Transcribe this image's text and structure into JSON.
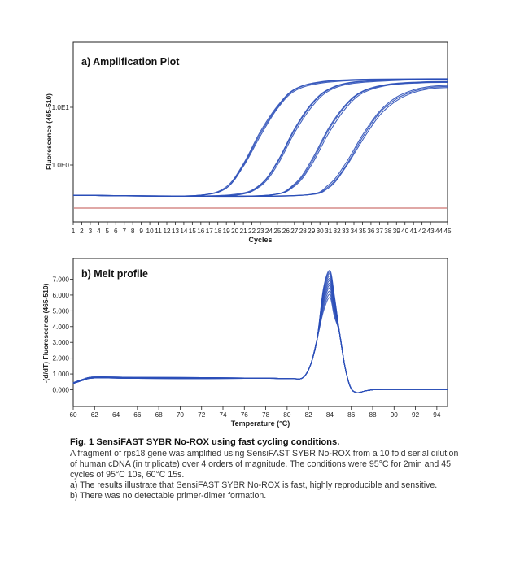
{
  "colors": {
    "curve": "#2b4fb8",
    "baseline": "#c0504d",
    "axis": "#222222"
  },
  "chart_data": [
    {
      "type": "line",
      "title": "a) Amplification Plot",
      "xlabel": "Cycles",
      "ylabel": "Fluorescence (465-510)",
      "y_scale": "log",
      "xlim": [
        1,
        45
      ],
      "x_ticks": [
        1,
        2,
        3,
        4,
        5,
        6,
        7,
        8,
        9,
        10,
        11,
        12,
        13,
        14,
        15,
        16,
        17,
        18,
        19,
        20,
        21,
        22,
        23,
        24,
        25,
        26,
        27,
        28,
        29,
        30,
        31,
        32,
        33,
        34,
        35,
        36,
        37,
        38,
        39,
        40,
        41,
        42,
        43,
        44,
        45
      ],
      "y_ticks": [
        "1.0E1",
        "1.0E0"
      ],
      "threshold_line_color": "#c0504d",
      "series": [
        {
          "values": [
            [
              1,
              0.3
            ],
            [
              10,
              0.29
            ],
            [
              16,
              0.3
            ],
            [
              19,
              0.4
            ],
            [
              21,
              1.0
            ],
            [
              23,
              3.5
            ],
            [
              25,
              10.0
            ],
            [
              27,
              20.0
            ],
            [
              30,
              27.0
            ],
            [
              35,
              30.0
            ],
            [
              45,
              31.0
            ]
          ]
        },
        {
          "values": [
            [
              1,
              0.3
            ],
            [
              10,
              0.29
            ],
            [
              16,
              0.3
            ],
            [
              19,
              0.4
            ],
            [
              21,
              0.95
            ],
            [
              23,
              3.2
            ],
            [
              25,
              9.5
            ],
            [
              27,
              19.0
            ],
            [
              30,
              26.0
            ],
            [
              35,
              29.5
            ],
            [
              45,
              30.5
            ]
          ]
        },
        {
          "values": [
            [
              1,
              0.3
            ],
            [
              10,
              0.29
            ],
            [
              16,
              0.3
            ],
            [
              19,
              0.42
            ],
            [
              21,
              1.05
            ],
            [
              23,
              3.8
            ],
            [
              25,
              10.5
            ],
            [
              27,
              20.5
            ],
            [
              30,
              27.5
            ],
            [
              35,
              30.5
            ],
            [
              45,
              31.2
            ]
          ]
        },
        {
          "values": [
            [
              1,
              0.3
            ],
            [
              12,
              0.29
            ],
            [
              20,
              0.3
            ],
            [
              23,
              0.45
            ],
            [
              25,
              1.1
            ],
            [
              27,
              4.0
            ],
            [
              29,
              11.0
            ],
            [
              31,
              20.0
            ],
            [
              34,
              27.0
            ],
            [
              40,
              30.0
            ],
            [
              45,
              30.5
            ]
          ]
        },
        {
          "values": [
            [
              1,
              0.3
            ],
            [
              12,
              0.29
            ],
            [
              20,
              0.3
            ],
            [
              23,
              0.43
            ],
            [
              25,
              1.0
            ],
            [
              27,
              3.6
            ],
            [
              29,
              10.0
            ],
            [
              31,
              19.0
            ],
            [
              34,
              26.0
            ],
            [
              40,
              29.5
            ],
            [
              45,
              30.0
            ]
          ]
        },
        {
          "values": [
            [
              1,
              0.3
            ],
            [
              12,
              0.29
            ],
            [
              20,
              0.31
            ],
            [
              23,
              0.46
            ],
            [
              25,
              1.15
            ],
            [
              27,
              4.2
            ],
            [
              29,
              11.5
            ],
            [
              31,
              20.5
            ],
            [
              34,
              27.5
            ],
            [
              40,
              30.2
            ],
            [
              45,
              30.8
            ]
          ]
        },
        {
          "values": [
            [
              1,
              0.3
            ],
            [
              14,
              0.29
            ],
            [
              24,
              0.3
            ],
            [
              27,
              0.45
            ],
            [
              29,
              1.1
            ],
            [
              31,
              4.0
            ],
            [
              33,
              10.5
            ],
            [
              35,
              18.5
            ],
            [
              38,
              24.5
            ],
            [
              42,
              27.0
            ],
            [
              45,
              27.5
            ]
          ]
        },
        {
          "values": [
            [
              1,
              0.3
            ],
            [
              14,
              0.29
            ],
            [
              24,
              0.3
            ],
            [
              27,
              0.43
            ],
            [
              29,
              1.0
            ],
            [
              31,
              3.5
            ],
            [
              33,
              9.5
            ],
            [
              35,
              17.5
            ],
            [
              38,
              24.0
            ],
            [
              42,
              26.5
            ],
            [
              45,
              27.0
            ]
          ]
        },
        {
          "values": [
            [
              1,
              0.3
            ],
            [
              14,
              0.29
            ],
            [
              24,
              0.3
            ],
            [
              27,
              0.47
            ],
            [
              29,
              1.2
            ],
            [
              31,
              4.3
            ],
            [
              33,
              11.0
            ],
            [
              35,
              19.0
            ],
            [
              38,
              25.0
            ],
            [
              42,
              27.5
            ],
            [
              45,
              28.0
            ]
          ]
        },
        {
          "values": [
            [
              1,
              0.3
            ],
            [
              16,
              0.29
            ],
            [
              28,
              0.3
            ],
            [
              31,
              0.42
            ],
            [
              33,
              0.95
            ],
            [
              35,
              3.0
            ],
            [
              37,
              8.0
            ],
            [
              39,
              14.0
            ],
            [
              41,
              19.0
            ],
            [
              43,
              22.0
            ],
            [
              45,
              23.0
            ]
          ]
        },
        {
          "values": [
            [
              1,
              0.3
            ],
            [
              16,
              0.29
            ],
            [
              28,
              0.3
            ],
            [
              31,
              0.4
            ],
            [
              33,
              0.9
            ],
            [
              35,
              2.7
            ],
            [
              37,
              7.2
            ],
            [
              39,
              13.0
            ],
            [
              41,
              18.0
            ],
            [
              43,
              21.0
            ],
            [
              45,
              22.0
            ]
          ]
        },
        {
          "values": [
            [
              1,
              0.3
            ],
            [
              16,
              0.29
            ],
            [
              28,
              0.3
            ],
            [
              31,
              0.45
            ],
            [
              33,
              1.05
            ],
            [
              35,
              3.3
            ],
            [
              37,
              8.5
            ],
            [
              39,
              15.0
            ],
            [
              41,
              20.0
            ],
            [
              43,
              23.0
            ],
            [
              45,
              24.0
            ]
          ]
        }
      ]
    },
    {
      "type": "line",
      "title": "b) Melt profile",
      "xlabel": "Temperature (°C)",
      "ylabel": "-(d/dT) Fluorescence (465-510)",
      "xlim": [
        60,
        95
      ],
      "ylim": [
        -0.5,
        7.8
      ],
      "x_ticks": [
        60,
        62,
        64,
        66,
        68,
        70,
        72,
        74,
        76,
        78,
        80,
        82,
        84,
        86,
        88,
        90,
        92,
        94
      ],
      "y_ticks": [
        "7.000",
        "6.000",
        "5.000",
        "4.000",
        "3.000",
        "2.000",
        "1.000",
        "0.000"
      ],
      "peak_temperature": 84,
      "peak_heights": [
        7.55,
        7.45,
        7.35,
        7.2,
        7.05,
        6.9,
        6.75,
        6.6,
        6.45,
        6.25,
        6.05,
        5.85
      ]
    }
  ],
  "caption": {
    "title": "Fig. 1 SensiFAST SYBR No-ROX using fast cycling conditions.",
    "body": "A fragment of rps18 gene was amplified using SensiFAST SYBR No-ROX from a 10 fold serial dilution of human cDNA (in triplicate) over 4 orders of magnitude. The conditions were 95°C for 2min and 45 cycles of 95°C 10s, 60°C 15s.",
    "note_a": "a) The results illustrate that SensiFAST SYBR No-ROX is fast, highly reproducible and sensitive.",
    "note_b": "b) There was no detectable primer-dimer formation."
  }
}
